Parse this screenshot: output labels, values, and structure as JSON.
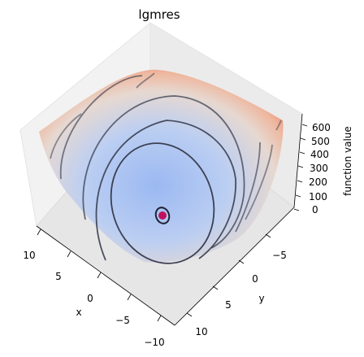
{
  "chart_data": {
    "type": "surface3d",
    "title": "lgmres",
    "xlabel": "x",
    "ylabel": "y",
    "zlabel": "function value",
    "x_ticks": [
      "10",
      "5",
      "0",
      "−5",
      "−10"
    ],
    "y_ticks": [
      "−5",
      "0",
      "5",
      "10"
    ],
    "z_ticks": [
      "0",
      "100",
      "200",
      "300",
      "400",
      "500",
      "600"
    ],
    "xlim": [
      -12,
      12
    ],
    "ylim": [
      -12,
      12
    ],
    "zlim": [
      0,
      650
    ],
    "colormap": "coolwarm",
    "contour_color": "#3a3f52",
    "minimum_point": {
      "x": 0,
      "y": 0,
      "z": 0,
      "color": "#c01060"
    }
  }
}
